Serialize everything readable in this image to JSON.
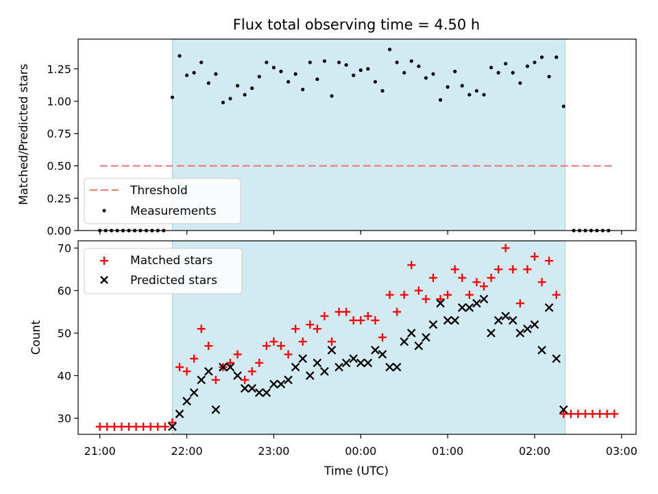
{
  "title": "Flux total observing time = 4.50 h",
  "chart_data": [
    {
      "type": "scatter",
      "panel": "top",
      "title": "Flux total observing time = 4.50 h",
      "xlabel": "",
      "ylabel": "Matched/Predicted stars",
      "xlim": [
        "20:45",
        "03:10"
      ],
      "ylim": [
        0,
        1.48
      ],
      "yticks": [
        "0.00",
        "0.25",
        "0.50",
        "0.75",
        "1.00",
        "1.25"
      ],
      "xticks": [
        "21:00",
        "22:00",
        "23:00",
        "00:00",
        "01:00",
        "02:00",
        "03:00"
      ],
      "shaded_interval": [
        "21:50",
        "02:21"
      ],
      "threshold": {
        "name": "Threshold",
        "y": 0.5,
        "x_start": "21:00",
        "x_end": "02:55",
        "color": "#f08080"
      },
      "legend": {
        "position": "lower-left",
        "entries": [
          "Threshold",
          "Measurements"
        ]
      },
      "series": [
        {
          "name": "Measurements",
          "color": "#000000",
          "points": [
            [
              "21:00",
              0
            ],
            [
              "21:04",
              0
            ],
            [
              "21:08",
              0
            ],
            [
              "21:12",
              0
            ],
            [
              "21:16",
              0
            ],
            [
              "21:20",
              0
            ],
            [
              "21:24",
              0
            ],
            [
              "21:28",
              0
            ],
            [
              "21:32",
              0
            ],
            [
              "21:36",
              0
            ],
            [
              "21:40",
              0
            ],
            [
              "21:44",
              0
            ],
            [
              "21:50",
              1.03
            ],
            [
              "21:55",
              1.35
            ],
            [
              "22:00",
              1.2
            ],
            [
              "22:05",
              1.22
            ],
            [
              "22:10",
              1.3
            ],
            [
              "22:15",
              1.14
            ],
            [
              "22:20",
              1.21
            ],
            [
              "22:25",
              0.99
            ],
            [
              "22:30",
              1.02
            ],
            [
              "22:35",
              1.12
            ],
            [
              "22:40",
              1.05
            ],
            [
              "22:45",
              1.1
            ],
            [
              "22:50",
              1.19
            ],
            [
              "22:55",
              1.3
            ],
            [
              "23:00",
              1.26
            ],
            [
              "23:05",
              1.23
            ],
            [
              "23:10",
              1.15
            ],
            [
              "23:15",
              1.21
            ],
            [
              "23:20",
              1.09
            ],
            [
              "23:25",
              1.3
            ],
            [
              "23:30",
              1.17
            ],
            [
              "23:35",
              1.31
            ],
            [
              "23:40",
              1.04
            ],
            [
              "23:45",
              1.3
            ],
            [
              "23:50",
              1.28
            ],
            [
              "23:55",
              1.2
            ],
            [
              "00:00",
              1.24
            ],
            [
              "00:05",
              1.25
            ],
            [
              "00:10",
              1.15
            ],
            [
              "00:15",
              1.08
            ],
            [
              "00:20",
              1.4
            ],
            [
              "00:25",
              1.3
            ],
            [
              "00:30",
              1.22
            ],
            [
              "00:35",
              1.31
            ],
            [
              "00:40",
              1.27
            ],
            [
              "00:45",
              1.18
            ],
            [
              "00:50",
              1.21
            ],
            [
              "00:55",
              1.01
            ],
            [
              "01:00",
              1.11
            ],
            [
              "01:05",
              1.23
            ],
            [
              "01:10",
              1.12
            ],
            [
              "01:15",
              1.05
            ],
            [
              "01:20",
              1.08
            ],
            [
              "01:25",
              1.05
            ],
            [
              "01:30",
              1.26
            ],
            [
              "01:35",
              1.22
            ],
            [
              "01:40",
              1.29
            ],
            [
              "01:45",
              1.22
            ],
            [
              "01:50",
              1.14
            ],
            [
              "01:55",
              1.27
            ],
            [
              "02:00",
              1.3
            ],
            [
              "02:05",
              1.34
            ],
            [
              "02:10",
              1.19
            ],
            [
              "02:15",
              1.34
            ],
            [
              "02:20",
              0.96
            ],
            [
              "02:27",
              0
            ],
            [
              "02:31",
              0
            ],
            [
              "02:35",
              0
            ],
            [
              "02:39",
              0
            ],
            [
              "02:43",
              0
            ],
            [
              "02:47",
              0
            ],
            [
              "02:51",
              0
            ]
          ]
        }
      ]
    },
    {
      "type": "scatter",
      "panel": "bottom",
      "xlabel": "Time (UTC)",
      "ylabel": "Count",
      "xlim": [
        "20:45",
        "03:10"
      ],
      "ylim": [
        26.2,
        71.7
      ],
      "yticks": [
        "30",
        "40",
        "50",
        "60",
        "70"
      ],
      "xticks": [
        "21:00",
        "22:00",
        "23:00",
        "00:00",
        "01:00",
        "02:00",
        "03:00"
      ],
      "shaded_interval": [
        "21:50",
        "02:21"
      ],
      "legend": {
        "position": "upper-left",
        "entries": [
          "Matched stars",
          "Predicted stars"
        ]
      },
      "series": [
        {
          "name": "Matched stars",
          "marker": "+",
          "color": "#ff0000",
          "points": [
            [
              "21:00",
              28
            ],
            [
              "21:05",
              28
            ],
            [
              "21:10",
              28
            ],
            [
              "21:15",
              28
            ],
            [
              "21:20",
              28
            ],
            [
              "21:25",
              28
            ],
            [
              "21:30",
              28
            ],
            [
              "21:35",
              28
            ],
            [
              "21:40",
              28
            ],
            [
              "21:45",
              28
            ],
            [
              "21:50",
              29
            ],
            [
              "21:55",
              42
            ],
            [
              "22:00",
              41
            ],
            [
              "22:05",
              44
            ],
            [
              "22:10",
              51
            ],
            [
              "22:15",
              47
            ],
            [
              "22:20",
              39
            ],
            [
              "22:25",
              42
            ],
            [
              "22:30",
              43
            ],
            [
              "22:35",
              45
            ],
            [
              "22:40",
              39
            ],
            [
              "22:45",
              41
            ],
            [
              "22:50",
              43
            ],
            [
              "22:55",
              47
            ],
            [
              "23:00",
              48
            ],
            [
              "23:05",
              47
            ],
            [
              "23:10",
              45
            ],
            [
              "23:15",
              51
            ],
            [
              "23:20",
              48
            ],
            [
              "23:25",
              52
            ],
            [
              "23:30",
              51
            ],
            [
              "23:35",
              54
            ],
            [
              "23:40",
              48
            ],
            [
              "23:45",
              55
            ],
            [
              "23:50",
              55
            ],
            [
              "23:55",
              53
            ],
            [
              "00:00",
              53
            ],
            [
              "00:05",
              54
            ],
            [
              "00:10",
              53
            ],
            [
              "00:15",
              49
            ],
            [
              "00:20",
              59
            ],
            [
              "00:25",
              55
            ],
            [
              "00:30",
              59
            ],
            [
              "00:35",
              66
            ],
            [
              "00:40",
              60
            ],
            [
              "00:45",
              58
            ],
            [
              "00:50",
              63
            ],
            [
              "00:55",
              58
            ],
            [
              "01:00",
              59
            ],
            [
              "01:05",
              65
            ],
            [
              "01:10",
              63
            ],
            [
              "01:15",
              59
            ],
            [
              "01:20",
              62
            ],
            [
              "01:25",
              61
            ],
            [
              "01:30",
              63
            ],
            [
              "01:35",
              65
            ],
            [
              "01:40",
              70
            ],
            [
              "01:45",
              65
            ],
            [
              "01:50",
              57
            ],
            [
              "01:55",
              65
            ],
            [
              "02:00",
              68
            ],
            [
              "02:05",
              62
            ],
            [
              "02:10",
              67
            ],
            [
              "02:15",
              59
            ],
            [
              "02:20",
              31
            ],
            [
              "02:25",
              31
            ],
            [
              "02:30",
              31
            ],
            [
              "02:35",
              31
            ],
            [
              "02:40",
              31
            ],
            [
              "02:45",
              31
            ],
            [
              "02:50",
              31
            ],
            [
              "02:55",
              31
            ]
          ]
        },
        {
          "name": "Predicted stars",
          "marker": "x",
          "color": "#000000",
          "points": [
            [
              "21:50",
              28
            ],
            [
              "21:55",
              31
            ],
            [
              "22:00",
              34
            ],
            [
              "22:05",
              36
            ],
            [
              "22:10",
              39
            ],
            [
              "22:15",
              41
            ],
            [
              "22:20",
              32
            ],
            [
              "22:25",
              42
            ],
            [
              "22:30",
              42
            ],
            [
              "22:35",
              40
            ],
            [
              "22:40",
              37
            ],
            [
              "22:45",
              37
            ],
            [
              "22:50",
              36
            ],
            [
              "22:55",
              36
            ],
            [
              "23:00",
              38
            ],
            [
              "23:05",
              38
            ],
            [
              "23:10",
              39
            ],
            [
              "23:15",
              42
            ],
            [
              "23:20",
              44
            ],
            [
              "23:25",
              40
            ],
            [
              "23:30",
              43
            ],
            [
              "23:35",
              41
            ],
            [
              "23:40",
              46
            ],
            [
              "23:45",
              42
            ],
            [
              "23:50",
              43
            ],
            [
              "23:55",
              44
            ],
            [
              "00:00",
              43
            ],
            [
              "00:05",
              43
            ],
            [
              "00:10",
              46
            ],
            [
              "00:15",
              45
            ],
            [
              "00:20",
              42
            ],
            [
              "00:25",
              42
            ],
            [
              "00:30",
              48
            ],
            [
              "00:35",
              50
            ],
            [
              "00:40",
              47
            ],
            [
              "00:45",
              49
            ],
            [
              "00:50",
              52
            ],
            [
              "00:55",
              57
            ],
            [
              "01:00",
              53
            ],
            [
              "01:05",
              53
            ],
            [
              "01:10",
              56
            ],
            [
              "01:15",
              56
            ],
            [
              "01:20",
              57
            ],
            [
              "01:25",
              58
            ],
            [
              "01:30",
              50
            ],
            [
              "01:35",
              53
            ],
            [
              "01:40",
              54
            ],
            [
              "01:45",
              53
            ],
            [
              "01:50",
              50
            ],
            [
              "01:55",
              51
            ],
            [
              "02:00",
              52
            ],
            [
              "02:05",
              46
            ],
            [
              "02:10",
              56
            ],
            [
              "02:15",
              44
            ],
            [
              "02:20",
              32
            ]
          ]
        }
      ]
    }
  ]
}
